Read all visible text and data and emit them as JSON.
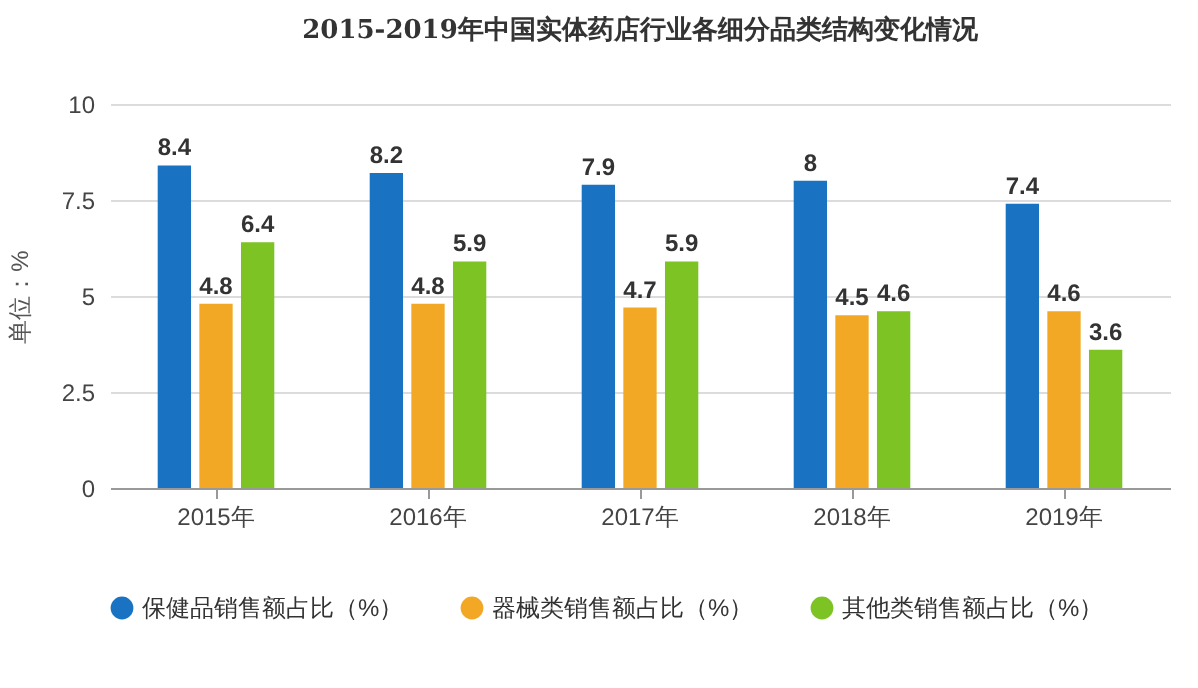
{
  "chart_data": {
    "type": "bar",
    "title": "2015-2019年中国实体药店行业各细分品类结构变化情况",
    "ylabel": "单位：%",
    "categories": [
      "2015年",
      "2016年",
      "2017年",
      "2018年",
      "2019年"
    ],
    "series": [
      {
        "name": "保健品销售额占比（%）",
        "color": "#1a73c2",
        "values": [
          8.4,
          8.2,
          7.9,
          8,
          7.4
        ]
      },
      {
        "name": "器械类销售额占比（%）",
        "color": "#f2a825",
        "values": [
          4.8,
          4.8,
          4.7,
          4.5,
          4.6
        ]
      },
      {
        "name": "其他类销售额占比（%）",
        "color": "#7dc323",
        "values": [
          6.4,
          5.9,
          5.9,
          4.6,
          3.6
        ]
      }
    ],
    "ylim": [
      0,
      10
    ],
    "yticks": [
      0,
      2.5,
      5,
      7.5,
      10
    ],
    "grid": "y",
    "legend": "bottom",
    "data_labels": true
  }
}
